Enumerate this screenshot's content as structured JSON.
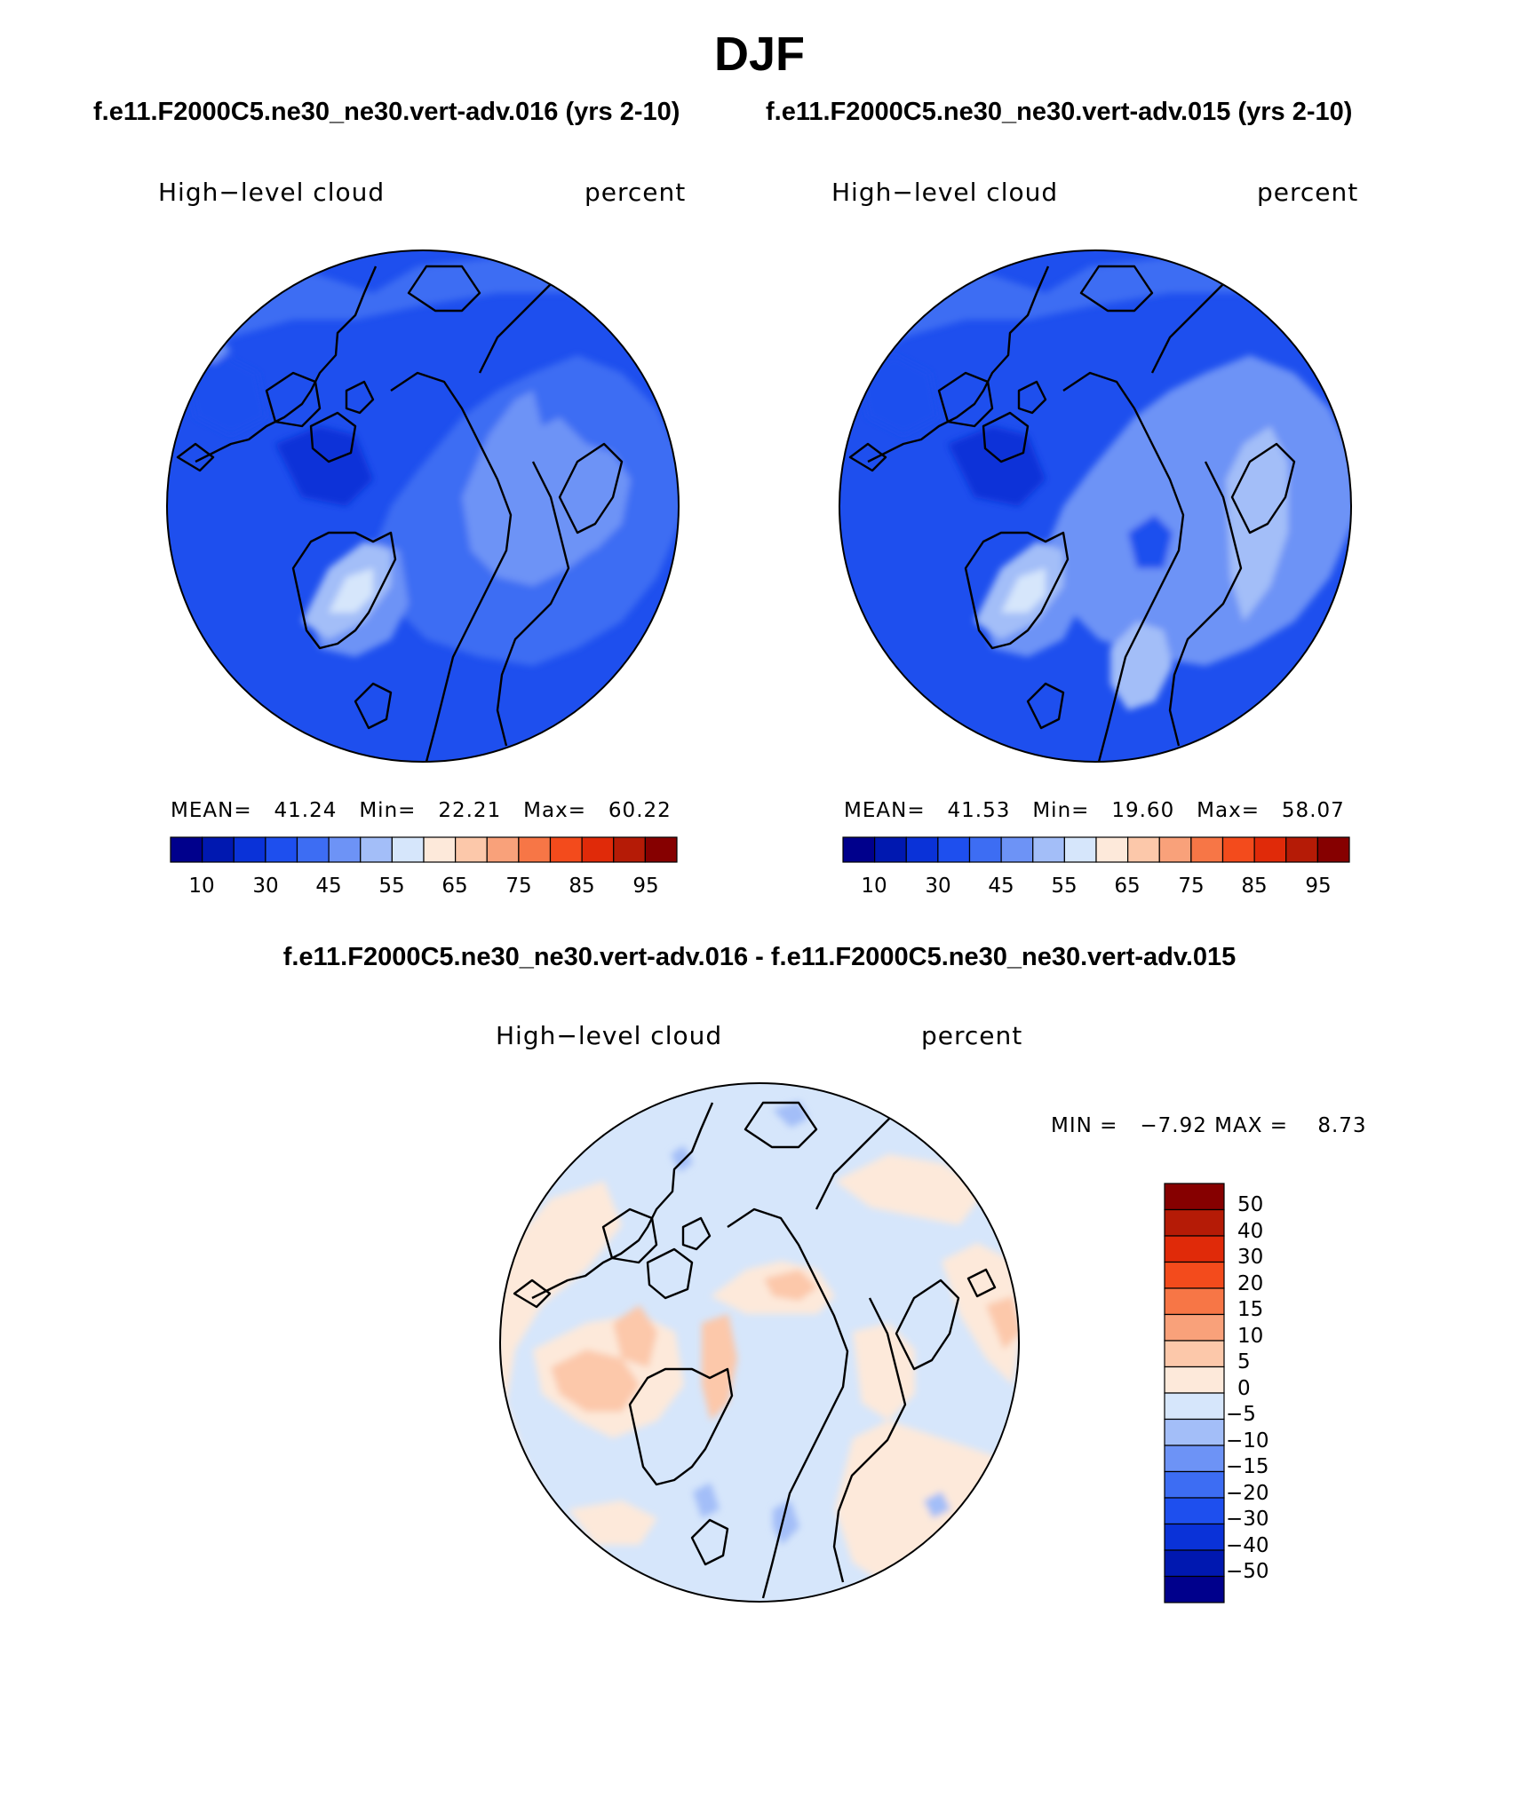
{
  "title": "DJF",
  "left_panel": {
    "case_title": "f.e11.F2000C5.ne30_ne30.vert-adv.016 (yrs 2-10)",
    "variable": "High−level cloud",
    "units": "percent",
    "stats": {
      "mean_label": "MEAN=",
      "mean": "41.24",
      "min_label": "Min=",
      "min": "22.21",
      "max_label": "Max=",
      "max": "60.22"
    }
  },
  "right_panel": {
    "case_title": "f.e11.F2000C5.ne30_ne30.vert-adv.015 (yrs 2-10)",
    "variable": "High−level cloud",
    "units": "percent",
    "stats": {
      "mean_label": "MEAN=",
      "mean": "41.53",
      "min_label": "Min=",
      "min": "19.60",
      "max_label": "Max=",
      "max": "58.07"
    }
  },
  "diff_panel": {
    "case_title": "f.e11.F2000C5.ne30_ne30.vert-adv.016 - f.e11.F2000C5.ne30_ne30.vert-adv.015",
    "variable": "High−level cloud",
    "units": "percent",
    "stats": {
      "min_label": "MIN =",
      "min": "−7.92",
      "max_label": "MAX =",
      "max": "8.73"
    }
  },
  "abs_colorbar": {
    "colors": [
      "#00008c",
      "#0018b0",
      "#0a32d8",
      "#1e4fee",
      "#3d6df3",
      "#6d93f6",
      "#a3bef8",
      "#d6e6fb",
      "#fde9da",
      "#fcc8aa",
      "#f9a17a",
      "#f77646",
      "#f34b1c",
      "#e02a09",
      "#b51b06",
      "#860000"
    ],
    "tick_labels": [
      "10",
      "30",
      "45",
      "55",
      "65",
      "75",
      "85",
      "95"
    ]
  },
  "diff_colorbar": {
    "colors": [
      "#860000",
      "#b51b06",
      "#e02a09",
      "#f34b1c",
      "#f77646",
      "#f9a17a",
      "#fcc8aa",
      "#fde9da",
      "#d6e6fb",
      "#a3bef8",
      "#6d93f6",
      "#3d6df3",
      "#1e4fee",
      "#0a32d8",
      "#0018b0",
      "#00008c"
    ],
    "tick_labels": [
      "50",
      "40",
      "30",
      "20",
      "15",
      "10",
      "5",
      "0",
      "−5",
      "−10",
      "−15",
      "−20",
      "−30",
      "−40",
      "−50"
    ]
  }
}
